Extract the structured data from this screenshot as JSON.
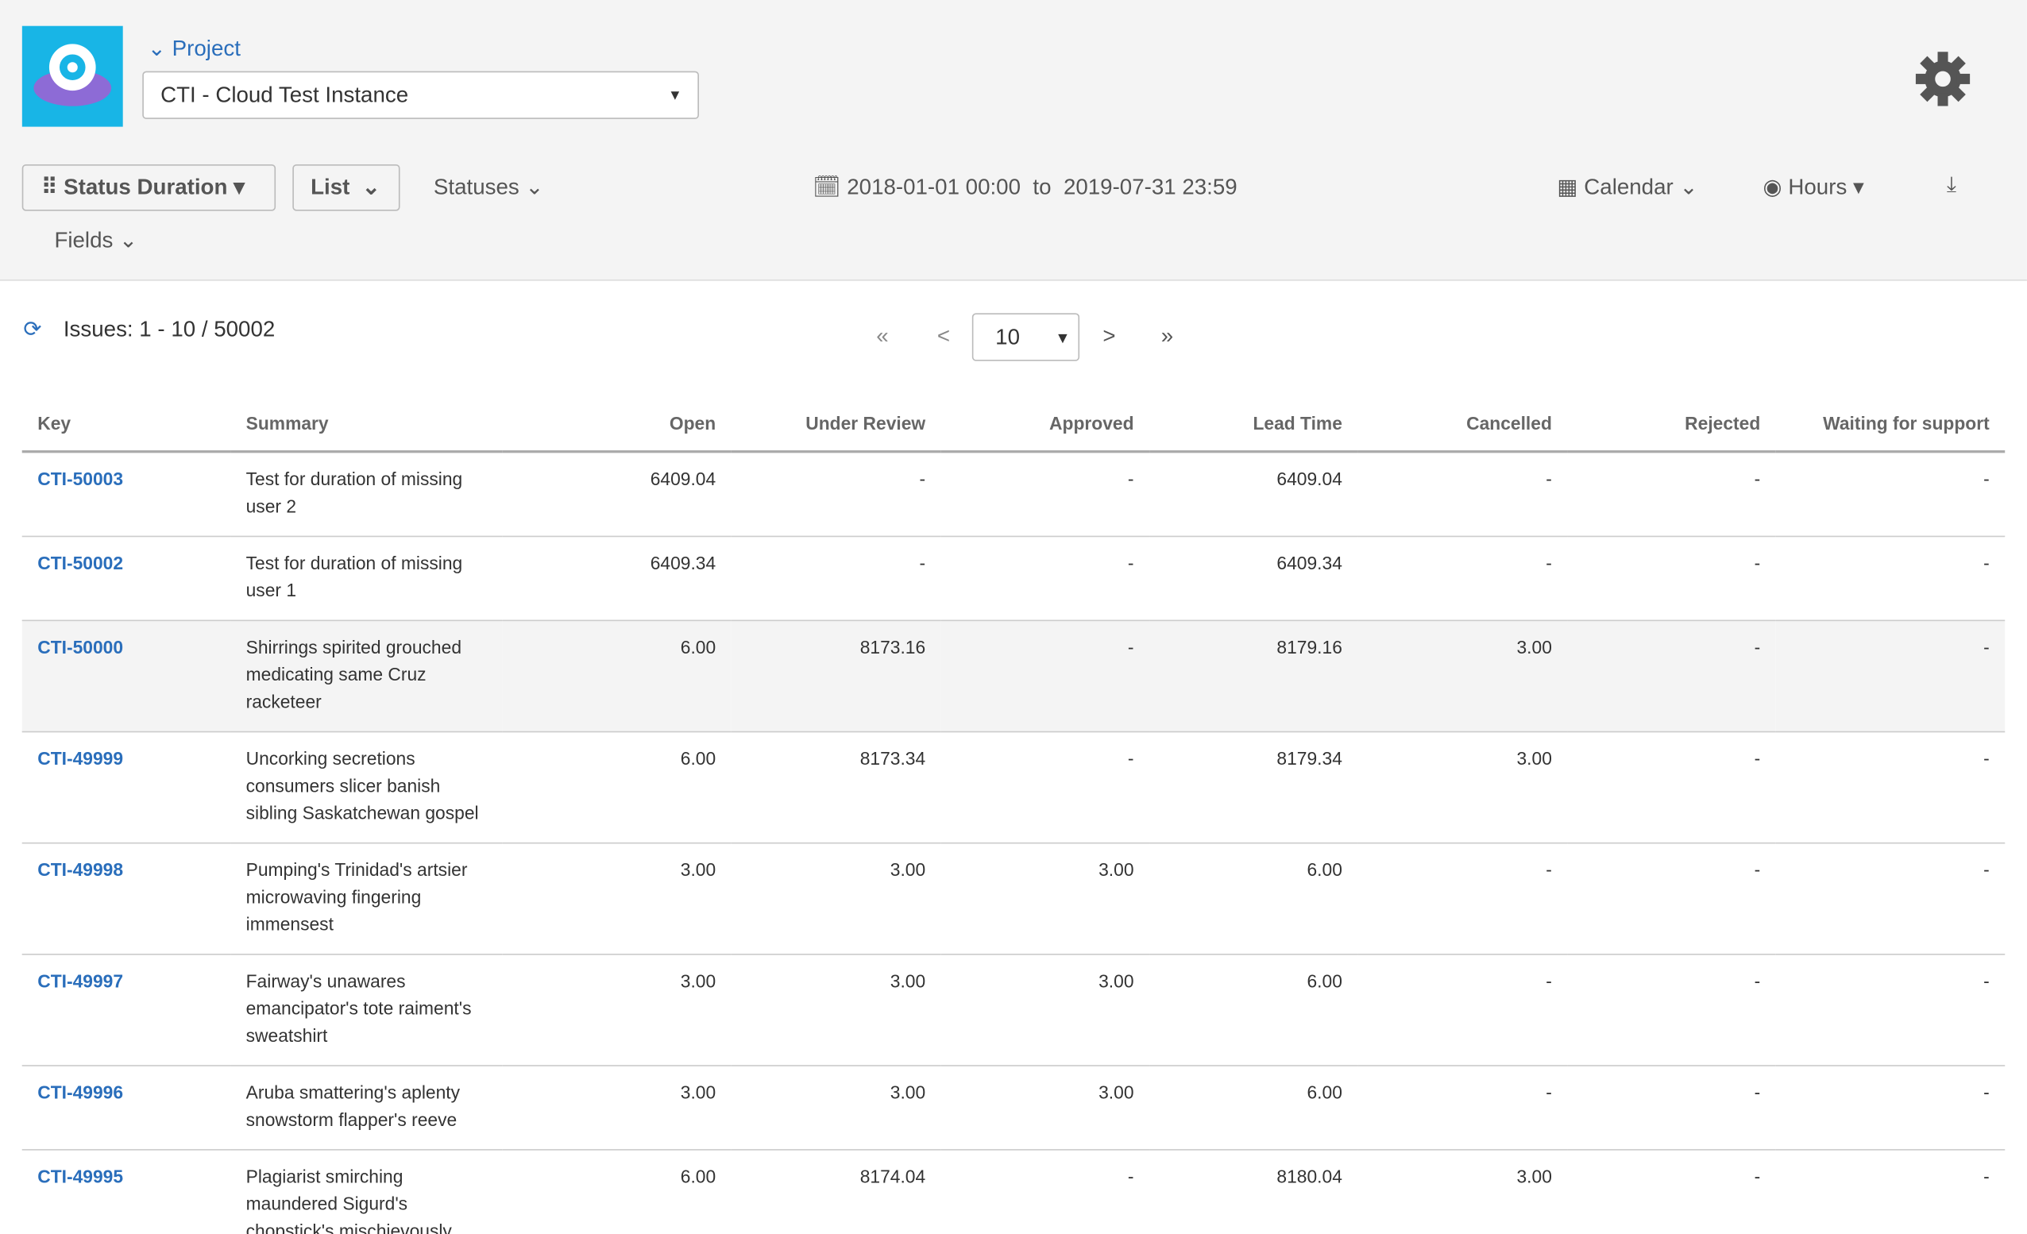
{
  "header": {
    "project_label": "Project",
    "project": "CTI - Cloud Test Instance"
  },
  "toolbar": {
    "view": "Status Duration",
    "mode": "List",
    "statuses": "Statuses",
    "fields": "Fields",
    "date_from": "2018-01-01 00:00",
    "to": "to",
    "date_to": "2019-07-31 23:59",
    "calendar": "Calendar",
    "hours": "Hours"
  },
  "pager": {
    "issues": "Issues: 1 - 10 / 50002",
    "first": "«",
    "prev": "<",
    "page_size": "10",
    "next": ">",
    "last": "»"
  },
  "table": {
    "columns": [
      "Key",
      "Summary",
      "Open",
      "Under Review",
      "Approved",
      "Lead Time",
      "Cancelled",
      "Rejected",
      "Waiting for support"
    ],
    "rows": [
      [
        "CTI-50003",
        "Test for duration of missing user 2",
        "6409.04",
        "-",
        "-",
        "6409.04",
        "-",
        "-",
        "-"
      ],
      [
        "CTI-50002",
        "Test for duration of missing user 1",
        "6409.34",
        "-",
        "-",
        "6409.34",
        "-",
        "-",
        "-"
      ],
      [
        "CTI-50000",
        "Shirrings spirited grouched medicating same Cruz racketeer",
        "6.00",
        "8173.16",
        "-",
        "8179.16",
        "3.00",
        "-",
        "-"
      ],
      [
        "CTI-49999",
        "Uncorking secretions consumers slicer banish sibling Saskatchewan gospel",
        "6.00",
        "8173.34",
        "-",
        "8179.34",
        "3.00",
        "-",
        "-"
      ],
      [
        "CTI-49998",
        "Pumping's Trinidad's artsier microwaving fingering immensest",
        "3.00",
        "3.00",
        "3.00",
        "6.00",
        "-",
        "-",
        "-"
      ],
      [
        "CTI-49997",
        "Fairway's unawares emancipator's tote raiment's sweatshirt",
        "3.00",
        "3.00",
        "3.00",
        "6.00",
        "-",
        "-",
        "-"
      ],
      [
        "CTI-49996",
        "Aruba smattering's aplenty snowstorm flapper's reeve",
        "3.00",
        "3.00",
        "3.00",
        "6.00",
        "-",
        "-",
        "-"
      ],
      [
        "CTI-49995",
        "Plagiarist smirching maundered Sigurd's chopstick's mischievously simpleton's questioner",
        "6.00",
        "8174.04",
        "-",
        "8180.04",
        "3.00",
        "-",
        "-"
      ]
    ]
  }
}
